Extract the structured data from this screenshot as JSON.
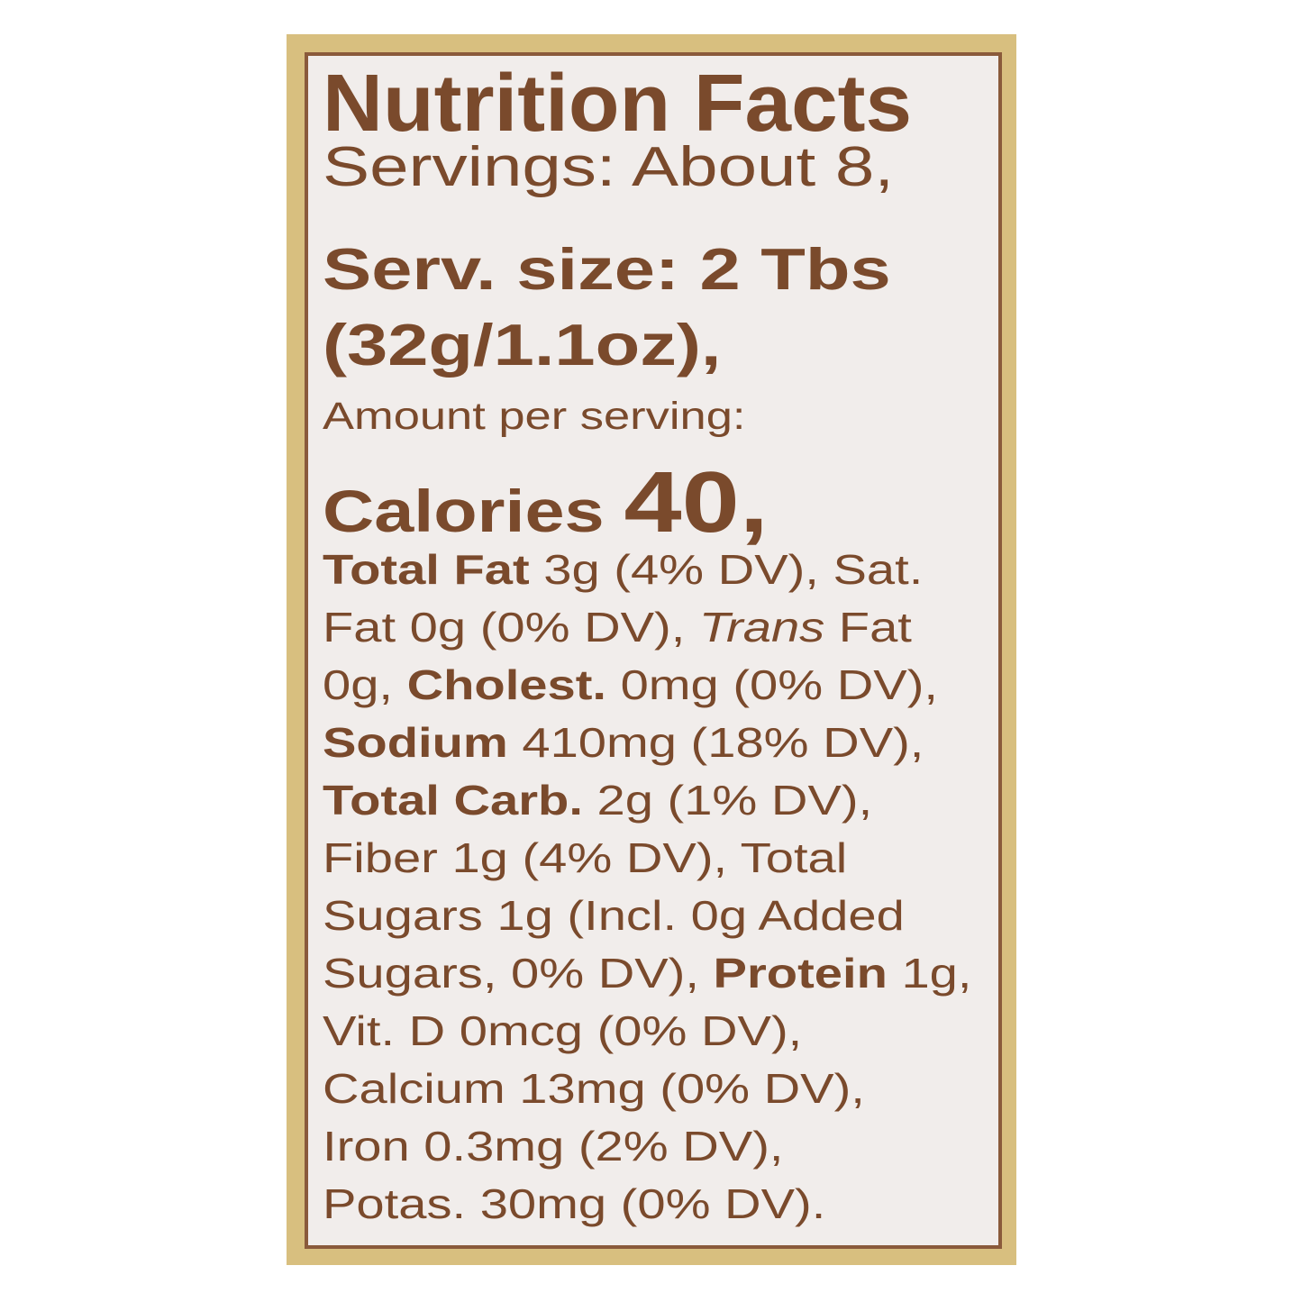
{
  "label": {
    "title": "Nutrition Facts",
    "servings": "Servings: About 8,",
    "serving_size": [
      "Serv. size: 2 Tbs",
      "(32g/1.1oz),"
    ],
    "amount_per_serving": "Amount per serving:",
    "calories": [
      "Calories ",
      "40,"
    ],
    "nutrients": [
      [
        "Total Fat",
        " 3g (4% DV), Sat."
      ],
      [
        "Fat 0g (0% DV), ",
        "Trans",
        " Fat"
      ],
      [
        "0g, ",
        "Cholest.",
        " 0mg (0% DV),"
      ],
      [
        "Sodium",
        " 410mg (18% DV),"
      ],
      [
        "Total Carb.",
        " 2g (1% DV),"
      ],
      [
        "Fiber 1g (4% DV), Total"
      ],
      [
        "Sugars 1g (Incl. 0g Added"
      ],
      [
        "Sugars, 0% DV), ",
        "Protein",
        " 1g,"
      ],
      [
        "Vit. D 0mcg (0% DV),"
      ],
      [
        "Calcium 13mg (0% DV),"
      ],
      [
        "Iron 0.3mg (2% DV),"
      ],
      [
        "Potas. 30mg (0% DV)."
      ]
    ]
  }
}
